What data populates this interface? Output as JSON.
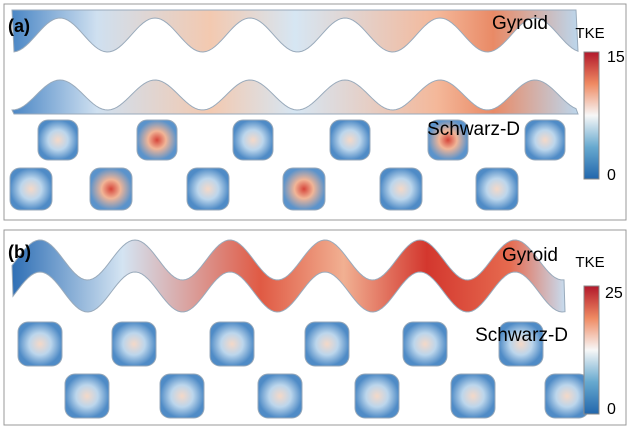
{
  "panels": [
    {
      "label": "(a)",
      "structures": [
        "Gyroid",
        "Schwarz-D"
      ],
      "colorbar": {
        "title": "TKE",
        "ticks": [
          15,
          0
        ]
      }
    },
    {
      "label": "(b)",
      "structures": [
        "Gyroid",
        "Schwarz-D"
      ],
      "colorbar": {
        "title": "TKE",
        "ticks": [
          25,
          0
        ]
      }
    }
  ]
}
